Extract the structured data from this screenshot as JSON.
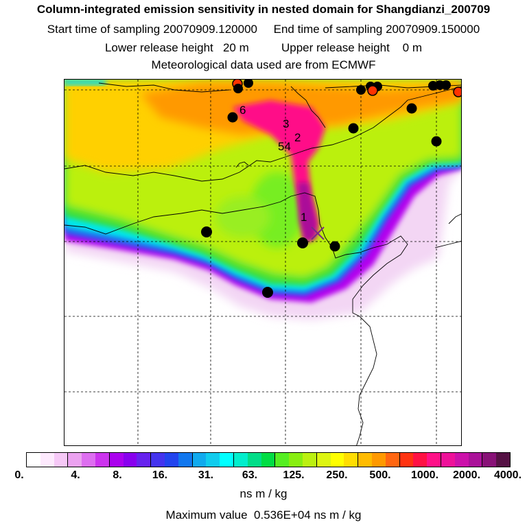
{
  "header": {
    "title": "Column-integrated emission sensitivity in nested domain for Shangdianzi_200709",
    "line1": "Start time of sampling 20070909.120000     End time of sampling 20070909.150000",
    "line2": "Lower release height   20 m          Upper release height    0 m",
    "line3": "Meteorological data used are from ECMWF"
  },
  "map": {
    "receptor_marker": "x-cross-icon",
    "trajectory_labels": [
      "1",
      "54",
      "2",
      "3",
      "6"
    ],
    "colors": {
      "coast": "#000000",
      "grid": "#000000",
      "black_site": "#000000",
      "red_site": "#ff3300"
    }
  },
  "colorbar": {
    "tick_labels": [
      "0.",
      "4.",
      "8.",
      "16.",
      "31.",
      "63.",
      "125.",
      "250.",
      "500.",
      "1000.",
      "2000.",
      "4000."
    ],
    "colors": [
      "#ffffff",
      "#fde9fd",
      "#f6c8f7",
      "#eba2f0",
      "#dd6ef0",
      "#cc33ee",
      "#aa00ee",
      "#8800ee",
      "#6622ee",
      "#4433ee",
      "#2244ee",
      "#1177ee",
      "#11aaee",
      "#11ccee",
      "#00ffff",
      "#00eecc",
      "#00dd88",
      "#00dd44",
      "#55ee22",
      "#88ee11",
      "#bbf011",
      "#ddf511",
      "#ffff00",
      "#ffdd00",
      "#ffbb00",
      "#ff9900",
      "#ff6611",
      "#ff3311",
      "#ff1144",
      "#ff1188",
      "#ee1199",
      "#cc11aa",
      "#aa1199",
      "#881177",
      "#551144"
    ],
    "units": "ns m / kg",
    "max_value": "Maximum value  0.536E+04 ns m / kg"
  }
}
